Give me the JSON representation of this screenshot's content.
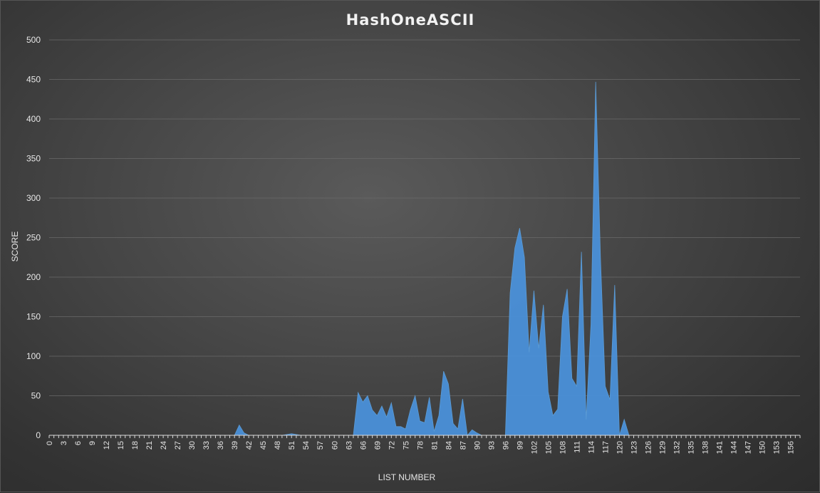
{
  "chart_data": {
    "type": "area",
    "title": "HashOneASCII",
    "xlabel": "LIST NUMBER",
    "ylabel": "SCORE",
    "ylim": [
      0,
      500
    ],
    "yticks": [
      0,
      50,
      100,
      150,
      200,
      250,
      300,
      350,
      400,
      450,
      500
    ],
    "xlim": [
      0,
      158
    ],
    "xtick_step": 3,
    "x_tick_labels": [
      "0",
      "3",
      "6",
      "9",
      "12",
      "15",
      "18",
      "21",
      "24",
      "27",
      "30",
      "33",
      "36",
      "39",
      "42",
      "45",
      "48",
      "51",
      "54",
      "57",
      "60",
      "63",
      "66",
      "69",
      "72",
      "75",
      "78",
      "81",
      "84",
      "87",
      "90",
      "93",
      "96",
      "99",
      "102",
      "105",
      "108",
      "111",
      "114",
      "117",
      "120",
      "123",
      "126",
      "129",
      "132",
      "135",
      "138",
      "141",
      "144",
      "147",
      "150",
      "153",
      "156"
    ],
    "grid": true,
    "colors": {
      "fill": "#4a90d9",
      "edge": "#5b9bd5"
    },
    "series": [
      {
        "x": [
          0,
          38,
          39,
          40,
          41,
          42,
          48,
          49,
          50,
          51,
          52,
          53,
          63,
          64,
          65,
          66,
          67,
          68,
          69,
          70,
          71,
          72,
          73,
          74,
          75,
          76,
          77,
          78,
          79,
          80,
          81,
          82,
          83,
          84,
          85,
          86,
          87,
          88,
          89,
          90,
          91,
          96,
          97,
          98,
          99,
          100,
          101,
          102,
          103,
          104,
          105,
          106,
          107,
          108,
          109,
          110,
          111,
          112,
          113,
          114,
          115,
          116,
          117,
          118,
          119,
          120,
          121,
          122,
          158
        ],
        "values": [
          0,
          0,
          0,
          13,
          3,
          0,
          0,
          0,
          1,
          2,
          1,
          0,
          0,
          0,
          54,
          42,
          50,
          32,
          25,
          37,
          23,
          41,
          11,
          11,
          8,
          32,
          50,
          18,
          16,
          48,
          5,
          25,
          81,
          65,
          15,
          8,
          46,
          0,
          7,
          3,
          0,
          0,
          180,
          237,
          262,
          225,
          105,
          183,
          110,
          165,
          55,
          25,
          33,
          150,
          185,
          72,
          62,
          232,
          20,
          140,
          447,
          225,
          62,
          45,
          190,
          0,
          20,
          0,
          0
        ]
      }
    ]
  }
}
